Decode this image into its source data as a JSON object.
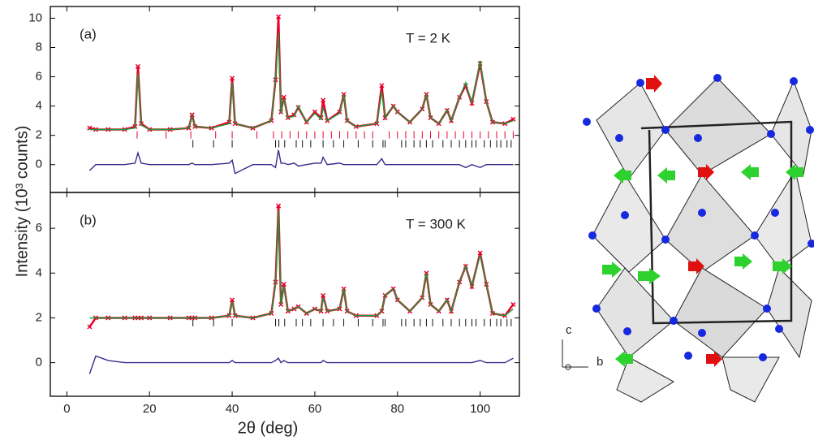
{
  "chart_data": [
    {
      "type": "line",
      "panel_label": "(a)",
      "annotation": "T = 2 K",
      "y_label": "Intensity (10³ counts)",
      "xlim": [
        -4,
        109.5
      ],
      "ylim": [
        -1.9,
        10.8
      ],
      "xticks": [
        0,
        20,
        40,
        60,
        80,
        100
      ],
      "yticks": [
        0,
        2,
        4,
        6,
        8,
        10
      ],
      "x": [
        5.5,
        7,
        10,
        14,
        16.5,
        17.2,
        18,
        20,
        25,
        29.5,
        30.3,
        31,
        35,
        39.3,
        40,
        40.7,
        45,
        49.5,
        50.5,
        51.2,
        51.8,
        52.5,
        53.5,
        55,
        56,
        58,
        60,
        61.5,
        62,
        63,
        66,
        67,
        67.8,
        70,
        75,
        76.2,
        77,
        79,
        80,
        83,
        86,
        87,
        88,
        90,
        92,
        93,
        95,
        96.5,
        98,
        100,
        101.5,
        103,
        106,
        108
      ],
      "series": [
        {
          "color": "#e8002a",
          "values": [
            2.5,
            2.4,
            2.4,
            2.4,
            2.6,
            6.7,
            2.8,
            2.4,
            2.4,
            2.5,
            3.4,
            2.6,
            2.5,
            2.9,
            5.9,
            2.8,
            2.5,
            3.0,
            5.8,
            10.1,
            3.6,
            4.6,
            3.2,
            3.4,
            3.9,
            2.9,
            3.6,
            3.2,
            4.4,
            3.0,
            3.6,
            4.8,
            3.0,
            2.6,
            2.8,
            5.4,
            3.2,
            4.0,
            3.6,
            2.9,
            3.8,
            4.8,
            3.2,
            2.8,
            3.7,
            3.0,
            4.6,
            5.4,
            4.2,
            6.9,
            4.3,
            2.9,
            2.8,
            3.1
          ]
        },
        {
          "color": "#1a9a3a",
          "values": [
            2.4,
            2.4,
            2.4,
            2.4,
            2.5,
            6.2,
            2.7,
            2.4,
            2.4,
            2.5,
            3.3,
            2.6,
            2.5,
            2.8,
            5.6,
            2.8,
            2.5,
            3.0,
            5.9,
            9.0,
            3.5,
            4.5,
            3.2,
            3.3,
            4.0,
            2.9,
            3.5,
            3.1,
            3.9,
            3.0,
            3.5,
            4.8,
            3.0,
            2.6,
            2.8,
            5.0,
            3.2,
            4.0,
            3.6,
            2.9,
            3.8,
            4.8,
            3.2,
            2.8,
            3.7,
            3.0,
            4.6,
            5.6,
            4.2,
            7.1,
            4.3,
            2.9,
            2.8,
            3.0
          ]
        },
        {
          "color": "#3b2a8c",
          "values": [
            -0.4,
            0,
            0,
            0,
            0.1,
            0.8,
            0.1,
            0,
            0,
            0,
            0.1,
            0,
            0,
            0.1,
            0.3,
            -0.6,
            0,
            0,
            -0.2,
            1.0,
            0.1,
            0.1,
            0,
            0.1,
            -0.1,
            0,
            0.1,
            0.1,
            0.5,
            0,
            0.1,
            0,
            0,
            0,
            0,
            0.4,
            0,
            0,
            0,
            0,
            0,
            0,
            0,
            0,
            0,
            0,
            0,
            -0.2,
            0,
            -0.2,
            0,
            0,
            0,
            0
          ]
        }
      ],
      "reflections": [
        {
          "color": "#e8002a",
          "x": [
            17,
            24,
            30,
            36,
            40,
            46,
            50,
            52,
            54,
            56,
            58,
            60,
            62,
            64,
            66,
            68,
            70,
            72,
            74,
            78,
            80,
            82,
            84,
            86,
            88,
            90,
            92,
            94,
            96,
            98,
            100,
            102,
            104,
            106,
            108
          ]
        },
        {
          "color": "#111111",
          "x": [
            30.5,
            35.5,
            40,
            50.5,
            51.3,
            52.7,
            55.5,
            57,
            59,
            62,
            64.5,
            67,
            70.5,
            74,
            76.5,
            77,
            81,
            82,
            84,
            85.5,
            87,
            88.5,
            91,
            93,
            95,
            96.5,
            98,
            99,
            101,
            102.5,
            104,
            105,
            106.5,
            107.5
          ]
        }
      ]
    },
    {
      "type": "line",
      "panel_label": "(b)",
      "annotation": "T = 300 K",
      "x_label": "2θ (deg)",
      "xlim": [
        -4,
        109.5
      ],
      "ylim": [
        -1.5,
        7.6
      ],
      "xticks": [
        0,
        20,
        40,
        60,
        80,
        100
      ],
      "yticks": [
        0,
        2,
        4,
        6
      ],
      "x": [
        5.5,
        7,
        10,
        14,
        16.5,
        17.2,
        18,
        20,
        25,
        29.5,
        30.3,
        31,
        35,
        39.3,
        40,
        40.7,
        45,
        49.5,
        50.5,
        51.2,
        51.8,
        52.5,
        53.5,
        55,
        56,
        58,
        60,
        61.5,
        62,
        63,
        66,
        67,
        67.8,
        70,
        75,
        76.2,
        77,
        79,
        80,
        83,
        86,
        87,
        88,
        90,
        92,
        93,
        95,
        96.5,
        98,
        100,
        101.5,
        103,
        106,
        108
      ],
      "series": [
        {
          "color": "#e8002a",
          "values": [
            1.6,
            2.0,
            2.0,
            2.0,
            2.0,
            2.0,
            2.0,
            2.0,
            2.0,
            2.0,
            2.0,
            2.0,
            2.0,
            2.1,
            2.8,
            2.1,
            2.0,
            2.2,
            3.6,
            7.0,
            2.6,
            3.5,
            2.3,
            2.4,
            2.5,
            2.2,
            2.4,
            2.3,
            3.0,
            2.3,
            2.4,
            3.3,
            2.3,
            2.1,
            2.1,
            2.3,
            3.0,
            3.3,
            2.8,
            2.3,
            2.9,
            4.0,
            2.6,
            2.3,
            2.8,
            2.3,
            3.6,
            4.3,
            3.4,
            4.9,
            3.5,
            2.2,
            2.1,
            2.6
          ]
        },
        {
          "color": "#1a9a3a",
          "values": [
            2.0,
            2.0,
            2.0,
            2.0,
            2.0,
            2.0,
            2.0,
            2.0,
            2.0,
            2.0,
            2.0,
            2.0,
            2.0,
            2.1,
            2.7,
            2.1,
            2.0,
            2.2,
            3.5,
            6.8,
            2.6,
            3.4,
            2.3,
            2.4,
            2.5,
            2.2,
            2.4,
            2.3,
            2.9,
            2.3,
            2.4,
            3.3,
            2.3,
            2.1,
            2.1,
            2.3,
            3.0,
            3.3,
            2.8,
            2.3,
            2.9,
            4.0,
            2.6,
            2.3,
            2.8,
            2.3,
            3.6,
            4.3,
            3.4,
            4.8,
            3.5,
            2.2,
            2.1,
            2.4
          ]
        },
        {
          "color": "#3b2a8c",
          "values": [
            -0.5,
            0.3,
            0.1,
            0,
            0,
            0,
            0,
            0,
            0,
            0,
            0,
            0,
            0,
            0,
            0.1,
            0,
            0,
            0,
            0.1,
            0.2,
            0,
            0.1,
            0,
            0,
            0,
            0,
            0,
            0,
            0.1,
            0,
            0,
            0,
            0,
            0,
            0,
            0,
            0,
            0,
            0,
            0,
            0,
            0,
            0,
            0,
            0,
            0,
            0,
            0,
            0,
            0.1,
            0,
            0,
            0,
            0.2
          ]
        }
      ],
      "reflections": [
        {
          "color": "#111111",
          "x": [
            30.5,
            35.5,
            40,
            50.5,
            51.3,
            52.7,
            55.5,
            57,
            59,
            62,
            64.5,
            67,
            70.5,
            74,
            76.5,
            77,
            81,
            82,
            84,
            85.5,
            87,
            88.5,
            91,
            93,
            95,
            96.5,
            98,
            99,
            101,
            102.5,
            104,
            105,
            106.5,
            107.5
          ]
        }
      ]
    }
  ],
  "structure": {
    "axis_labels": [
      "c",
      "b"
    ]
  }
}
